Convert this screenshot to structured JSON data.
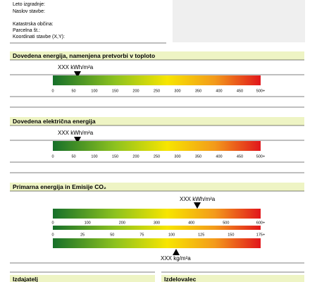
{
  "fields": [
    "Leto izgradnje:",
    "Naslov stavbe:",
    "Katastrska občina:",
    "Parcelna št.:",
    "Koordinati stavbe (X,Y):"
  ],
  "sections": [
    {
      "title": "Dovedena energija, namenjena pretvorbi v toploto",
      "marker_label": "XXX kWh/m²a",
      "scale": [
        "0",
        "50",
        "100",
        "150",
        "200",
        "250",
        "300",
        "350",
        "400",
        "450",
        "500+"
      ]
    },
    {
      "title": "Dovedena električna energija",
      "marker_label": "XXX kWh/m²a",
      "scale": [
        "0",
        "50",
        "100",
        "150",
        "200",
        "250",
        "300",
        "350",
        "400",
        "450",
        "500+"
      ]
    },
    {
      "title": "Primarna energija in Emisije CO₂",
      "marker_label": "XXX kWh/m²a",
      "scale": [
        "0",
        "100",
        "200",
        "300",
        "400",
        "500",
        "600+"
      ],
      "scale2": [
        "0",
        "25",
        "50",
        "75",
        "100",
        "125",
        "150",
        "175+"
      ],
      "marker2_label": "XXX kg/m²a"
    }
  ],
  "footer": [
    "Izdajatelj",
    "Izdelovalec"
  ]
}
